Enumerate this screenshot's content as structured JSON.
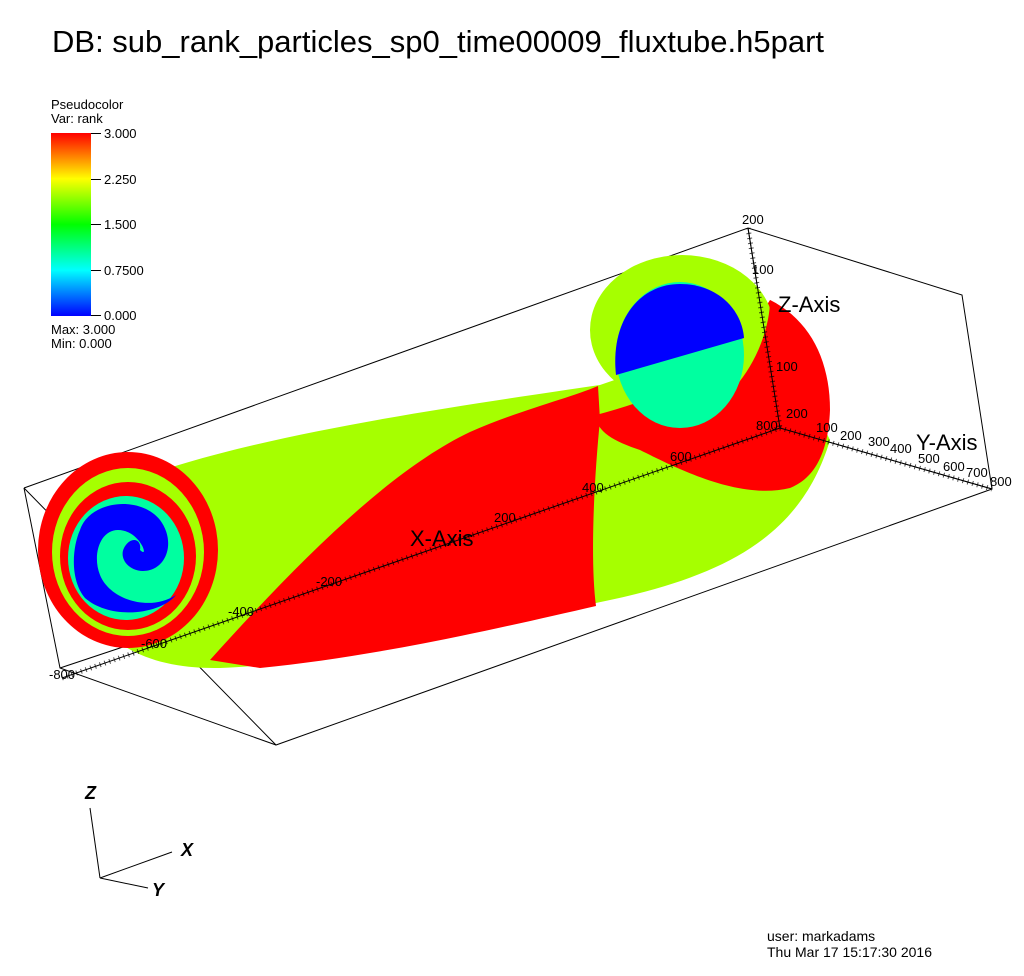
{
  "title": "DB: sub_rank_particles_sp0_time00009_fluxtube.h5part",
  "legend": {
    "plot_type": "Pseudocolor",
    "variable": "Var: rank",
    "ticks": [
      "3.000",
      "2.250",
      "1.500",
      "0.7500",
      "0.000"
    ],
    "max": "Max:  3.000",
    "min": "Min:  0.000",
    "colors": [
      "#ff0000",
      "#ffff00",
      "#00ff00",
      "#00ffff",
      "#0000ff"
    ]
  },
  "axes": {
    "x_label": "X-Axis",
    "y_label": "Y-Axis",
    "z_label": "Z-Axis",
    "x_ticks": [
      "-800",
      "-600",
      "-400",
      "-200",
      "200",
      "400",
      "600",
      "800"
    ],
    "y_ticks": [
      "100",
      "200",
      "300",
      "400",
      "500",
      "600",
      "700",
      "800"
    ],
    "z_ticks": [
      "200",
      "100",
      "100",
      "200"
    ]
  },
  "surface_colors": {
    "rank3": "#ff0000",
    "rank2": "#a6ff00",
    "rank1": "#00ffa0",
    "rank0": "#0000ff"
  },
  "triad": {
    "x": "X",
    "y": "Y",
    "z": "Z"
  },
  "user_info": {
    "user": "user: markadams",
    "date": "Thu Mar 17 15:17:30 2016"
  }
}
